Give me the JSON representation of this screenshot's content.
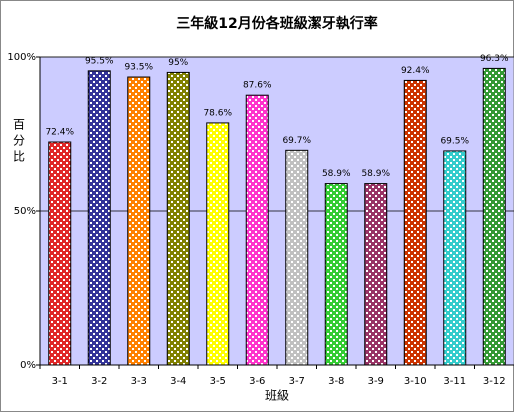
{
  "chart_data": {
    "type": "bar",
    "title": "三年級12月份各班級潔牙執行率",
    "x_label": "班級",
    "y_label": "百分比",
    "categories": [
      "3-1",
      "3-2",
      "3-3",
      "3-4",
      "3-5",
      "3-6",
      "3-7",
      "3-8",
      "3-9",
      "3-10",
      "3-11",
      "3-12"
    ],
    "values": [
      72.4,
      95.5,
      93.5,
      95,
      78.6,
      87.6,
      69.7,
      58.9,
      58.9,
      92.4,
      69.5,
      96.3
    ],
    "value_labels": [
      "72.4%",
      "95.5%",
      "93.5%",
      "95%",
      "78.6%",
      "87.6%",
      "69.7%",
      "58.9%",
      "58.9%",
      "92.4%",
      "69.5%",
      "96.3%"
    ],
    "colors": [
      "#e02828",
      "#333399",
      "#ff8000",
      "#808000",
      "#ffff00",
      "#ff33cc",
      "#c0c0c0",
      "#33cc33",
      "#993366",
      "#cc3300",
      "#33cccc",
      "#339933"
    ],
    "ylim": [
      0,
      100
    ],
    "yticks": [
      {
        "value": 0,
        "label": "0%"
      },
      {
        "value": 50,
        "label": "50%"
      },
      {
        "value": 100,
        "label": "100%"
      }
    ],
    "grid": true
  }
}
